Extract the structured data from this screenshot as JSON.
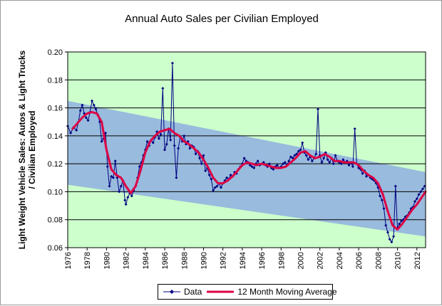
{
  "chart_data": {
    "type": "line",
    "title": "Annual Auto Sales per Civilian Employed",
    "ylabel_line1": "Light Weight Vehicle Sales: Autos & Light Trucks",
    "ylabel_line2": "/ Civilian Employed",
    "xlabel": "",
    "xlim": [
      1976,
      2012.9
    ],
    "ylim": [
      0.06,
      0.2
    ],
    "x_ticks": [
      "1976",
      "1978",
      "1980",
      "1982",
      "1984",
      "1986",
      "1988",
      "1990",
      "1992",
      "1994",
      "1996",
      "1998",
      "2000",
      "2002",
      "2004",
      "2006",
      "2008",
      "2010",
      "2012"
    ],
    "y_ticks": [
      "0.06",
      "0.08",
      "0.10",
      "0.12",
      "0.14",
      "0.16",
      "0.18",
      "0.20"
    ],
    "trend_band": {
      "upper": [
        [
          1976,
          0.165
        ],
        [
          2012.9,
          0.114
        ]
      ],
      "lower": [
        [
          1976,
          0.105
        ],
        [
          2012.9,
          0.068
        ]
      ]
    },
    "colors": {
      "plot_background": "#ccffcc",
      "band": "#99bbdd",
      "data_line": "#000080",
      "moving_average": "#dd0044",
      "gridline": "#000000"
    },
    "series": [
      {
        "name": "Data",
        "points": [
          [
            1976.0,
            0.147
          ],
          [
            1976.3,
            0.142
          ],
          [
            1976.6,
            0.146
          ],
          [
            1976.9,
            0.144
          ],
          [
            1977.1,
            0.15
          ],
          [
            1977.3,
            0.158
          ],
          [
            1977.5,
            0.162
          ],
          [
            1977.7,
            0.156
          ],
          [
            1977.9,
            0.153
          ],
          [
            1978.1,
            0.151
          ],
          [
            1978.3,
            0.157
          ],
          [
            1978.5,
            0.165
          ],
          [
            1978.7,
            0.162
          ],
          [
            1978.9,
            0.159
          ],
          [
            1979.1,
            0.155
          ],
          [
            1979.3,
            0.15
          ],
          [
            1979.5,
            0.136
          ],
          [
            1979.7,
            0.138
          ],
          [
            1979.9,
            0.142
          ],
          [
            1980.1,
            0.118
          ],
          [
            1980.3,
            0.104
          ],
          [
            1980.5,
            0.111
          ],
          [
            1980.7,
            0.11
          ],
          [
            1980.9,
            0.122
          ],
          [
            1981.1,
            0.11
          ],
          [
            1981.3,
            0.1
          ],
          [
            1981.5,
            0.104
          ],
          [
            1981.7,
            0.108
          ],
          [
            1981.9,
            0.094
          ],
          [
            1982.0,
            0.091
          ],
          [
            1982.2,
            0.096
          ],
          [
            1982.4,
            0.099
          ],
          [
            1982.6,
            0.097
          ],
          [
            1982.8,
            0.101
          ],
          [
            1983.0,
            0.104
          ],
          [
            1983.2,
            0.11
          ],
          [
            1983.4,
            0.118
          ],
          [
            1983.6,
            0.121
          ],
          [
            1983.8,
            0.126
          ],
          [
            1984.0,
            0.13
          ],
          [
            1984.2,
            0.136
          ],
          [
            1984.4,
            0.133
          ],
          [
            1984.6,
            0.137
          ],
          [
            1984.8,
            0.135
          ],
          [
            1985.0,
            0.139
          ],
          [
            1985.2,
            0.143
          ],
          [
            1985.4,
            0.138
          ],
          [
            1985.6,
            0.141
          ],
          [
            1985.8,
            0.174
          ],
          [
            1986.0,
            0.13
          ],
          [
            1986.2,
            0.134
          ],
          [
            1986.4,
            0.145
          ],
          [
            1986.6,
            0.137
          ],
          [
            1986.8,
            0.192
          ],
          [
            1987.0,
            0.133
          ],
          [
            1987.2,
            0.11
          ],
          [
            1987.4,
            0.131
          ],
          [
            1987.6,
            0.139
          ],
          [
            1987.8,
            0.136
          ],
          [
            1988.0,
            0.14
          ],
          [
            1988.2,
            0.134
          ],
          [
            1988.4,
            0.136
          ],
          [
            1988.6,
            0.131
          ],
          [
            1988.8,
            0.133
          ],
          [
            1989.0,
            0.132
          ],
          [
            1989.2,
            0.127
          ],
          [
            1989.4,
            0.129
          ],
          [
            1989.6,
            0.124
          ],
          [
            1989.8,
            0.12
          ],
          [
            1990.0,
            0.126
          ],
          [
            1990.2,
            0.115
          ],
          [
            1990.4,
            0.117
          ],
          [
            1990.6,
            0.112
          ],
          [
            1990.8,
            0.109
          ],
          [
            1991.0,
            0.101
          ],
          [
            1991.2,
            0.103
          ],
          [
            1991.4,
            0.104
          ],
          [
            1991.6,
            0.106
          ],
          [
            1991.8,
            0.103
          ],
          [
            1992.0,
            0.106
          ],
          [
            1992.2,
            0.108
          ],
          [
            1992.4,
            0.11
          ],
          [
            1992.6,
            0.109
          ],
          [
            1992.8,
            0.112
          ],
          [
            1993.0,
            0.111
          ],
          [
            1993.2,
            0.114
          ],
          [
            1993.4,
            0.113
          ],
          [
            1993.6,
            0.116
          ],
          [
            1993.8,
            0.118
          ],
          [
            1994.0,
            0.12
          ],
          [
            1994.2,
            0.124
          ],
          [
            1994.4,
            0.122
          ],
          [
            1994.6,
            0.121
          ],
          [
            1994.8,
            0.119
          ],
          [
            1995.0,
            0.118
          ],
          [
            1995.2,
            0.117
          ],
          [
            1995.4,
            0.12
          ],
          [
            1995.6,
            0.122
          ],
          [
            1995.8,
            0.119
          ],
          [
            1996.0,
            0.12
          ],
          [
            1996.2,
            0.121
          ],
          [
            1996.4,
            0.119
          ],
          [
            1996.6,
            0.118
          ],
          [
            1996.8,
            0.12
          ],
          [
            1997.0,
            0.117
          ],
          [
            1997.2,
            0.116
          ],
          [
            1997.4,
            0.118
          ],
          [
            1997.6,
            0.119
          ],
          [
            1997.8,
            0.117
          ],
          [
            1998.0,
            0.118
          ],
          [
            1998.2,
            0.12
          ],
          [
            1998.4,
            0.121
          ],
          [
            1998.6,
            0.119
          ],
          [
            1998.8,
            0.122
          ],
          [
            1999.0,
            0.125
          ],
          [
            1999.2,
            0.124
          ],
          [
            1999.4,
            0.126
          ],
          [
            1999.6,
            0.127
          ],
          [
            1999.8,
            0.129
          ],
          [
            2000.0,
            0.13
          ],
          [
            2000.2,
            0.135
          ],
          [
            2000.4,
            0.128
          ],
          [
            2000.6,
            0.126
          ],
          [
            2000.8,
            0.123
          ],
          [
            2001.0,
            0.125
          ],
          [
            2001.2,
            0.122
          ],
          [
            2001.4,
            0.124
          ],
          [
            2001.6,
            0.127
          ],
          [
            2001.8,
            0.159
          ],
          [
            2002.0,
            0.126
          ],
          [
            2002.2,
            0.121
          ],
          [
            2002.4,
            0.124
          ],
          [
            2002.6,
            0.128
          ],
          [
            2002.8,
            0.123
          ],
          [
            2003.0,
            0.121
          ],
          [
            2003.2,
            0.124
          ],
          [
            2003.4,
            0.12
          ],
          [
            2003.6,
            0.126
          ],
          [
            2003.8,
            0.122
          ],
          [
            2004.0,
            0.121
          ],
          [
            2004.2,
            0.12
          ],
          [
            2004.4,
            0.123
          ],
          [
            2004.6,
            0.121
          ],
          [
            2004.8,
            0.122
          ],
          [
            2005.0,
            0.119
          ],
          [
            2005.2,
            0.121
          ],
          [
            2005.4,
            0.118
          ],
          [
            2005.6,
            0.145
          ],
          [
            2005.8,
            0.12
          ],
          [
            2006.0,
            0.117
          ],
          [
            2006.2,
            0.116
          ],
          [
            2006.4,
            0.113
          ],
          [
            2006.6,
            0.115
          ],
          [
            2006.8,
            0.111
          ],
          [
            2007.0,
            0.112
          ],
          [
            2007.2,
            0.11
          ],
          [
            2007.4,
            0.109
          ],
          [
            2007.6,
            0.108
          ],
          [
            2007.8,
            0.106
          ],
          [
            2008.0,
            0.103
          ],
          [
            2008.2,
            0.097
          ],
          [
            2008.4,
            0.094
          ],
          [
            2008.6,
            0.088
          ],
          [
            2008.8,
            0.076
          ],
          [
            2009.0,
            0.071
          ],
          [
            2009.2,
            0.066
          ],
          [
            2009.4,
            0.064
          ],
          [
            2009.6,
            0.068
          ],
          [
            2009.8,
            0.104
          ],
          [
            2010.0,
            0.074
          ],
          [
            2010.2,
            0.077
          ],
          [
            2010.4,
            0.079
          ],
          [
            2010.6,
            0.08
          ],
          [
            2010.8,
            0.082
          ],
          [
            2011.0,
            0.083
          ],
          [
            2011.2,
            0.085
          ],
          [
            2011.4,
            0.088
          ],
          [
            2011.6,
            0.089
          ],
          [
            2011.8,
            0.093
          ],
          [
            2012.0,
            0.095
          ],
          [
            2012.2,
            0.098
          ],
          [
            2012.4,
            0.1
          ],
          [
            2012.6,
            0.102
          ],
          [
            2012.8,
            0.104
          ]
        ]
      },
      {
        "name": "12 Month Moving Average",
        "points": [
          [
            1976.5,
            0.145
          ],
          [
            1977.0,
            0.149
          ],
          [
            1977.5,
            0.153
          ],
          [
            1978.0,
            0.156
          ],
          [
            1978.5,
            0.157
          ],
          [
            1979.0,
            0.156
          ],
          [
            1979.5,
            0.15
          ],
          [
            1980.0,
            0.13
          ],
          [
            1980.5,
            0.116
          ],
          [
            1981.0,
            0.112
          ],
          [
            1981.5,
            0.11
          ],
          [
            1982.0,
            0.104
          ],
          [
            1982.5,
            0.099
          ],
          [
            1983.0,
            0.104
          ],
          [
            1983.5,
            0.115
          ],
          [
            1984.0,
            0.128
          ],
          [
            1984.5,
            0.136
          ],
          [
            1985.0,
            0.14
          ],
          [
            1985.5,
            0.143
          ],
          [
            1986.0,
            0.144
          ],
          [
            1986.5,
            0.145
          ],
          [
            1987.0,
            0.142
          ],
          [
            1987.5,
            0.14
          ],
          [
            1988.0,
            0.136
          ],
          [
            1988.5,
            0.134
          ],
          [
            1989.0,
            0.131
          ],
          [
            1989.5,
            0.128
          ],
          [
            1990.0,
            0.123
          ],
          [
            1990.5,
            0.117
          ],
          [
            1991.0,
            0.11
          ],
          [
            1991.5,
            0.106
          ],
          [
            1992.0,
            0.106
          ],
          [
            1992.5,
            0.108
          ],
          [
            1993.0,
            0.111
          ],
          [
            1993.5,
            0.115
          ],
          [
            1994.0,
            0.119
          ],
          [
            1994.5,
            0.121
          ],
          [
            1995.0,
            0.12
          ],
          [
            1995.5,
            0.119
          ],
          [
            1996.0,
            0.12
          ],
          [
            1996.5,
            0.119
          ],
          [
            1997.0,
            0.118
          ],
          [
            1997.5,
            0.117
          ],
          [
            1998.0,
            0.117
          ],
          [
            1998.5,
            0.118
          ],
          [
            1999.0,
            0.121
          ],
          [
            1999.5,
            0.124
          ],
          [
            2000.0,
            0.128
          ],
          [
            2000.5,
            0.129
          ],
          [
            2001.0,
            0.126
          ],
          [
            2001.5,
            0.124
          ],
          [
            2002.0,
            0.125
          ],
          [
            2002.5,
            0.127
          ],
          [
            2003.0,
            0.125
          ],
          [
            2003.5,
            0.122
          ],
          [
            2004.0,
            0.122
          ],
          [
            2004.5,
            0.121
          ],
          [
            2005.0,
            0.121
          ],
          [
            2005.5,
            0.121
          ],
          [
            2006.0,
            0.119
          ],
          [
            2006.5,
            0.115
          ],
          [
            2007.0,
            0.112
          ],
          [
            2007.5,
            0.11
          ],
          [
            2008.0,
            0.106
          ],
          [
            2008.5,
            0.098
          ],
          [
            2009.0,
            0.086
          ],
          [
            2009.5,
            0.076
          ],
          [
            2010.0,
            0.073
          ],
          [
            2010.5,
            0.077
          ],
          [
            2011.0,
            0.082
          ],
          [
            2011.5,
            0.087
          ],
          [
            2012.0,
            0.091
          ],
          [
            2012.5,
            0.096
          ],
          [
            2012.9,
            0.1
          ]
        ]
      }
    ],
    "legend": {
      "position": "bottom-center",
      "items": [
        "Data",
        "12 Month Moving Average"
      ]
    }
  }
}
